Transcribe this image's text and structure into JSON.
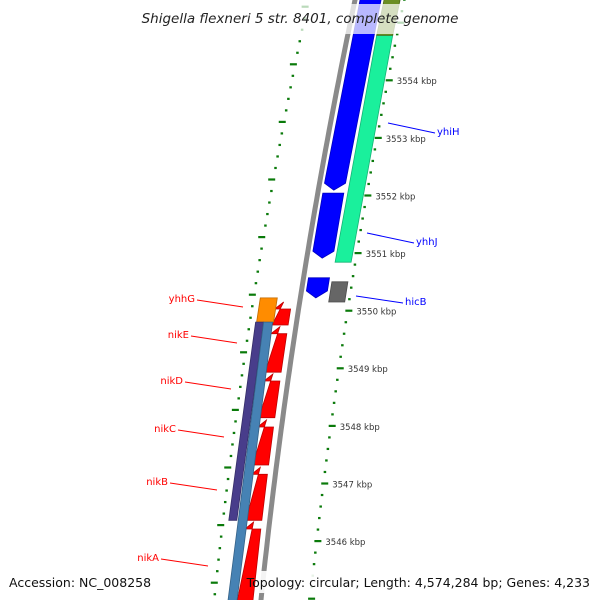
{
  "title": "Shigella flexneri 5 str. 8401, complete genome",
  "footer": {
    "accession": "Accession: NC_008258",
    "topology": "Topology: circular; Length: 4,574,284 bp; Genes: 4,233"
  },
  "colors": {
    "backbone": "#8a8a8a",
    "ruler": "#0a7a0a",
    "forward_label": "#0000ff",
    "reverse_label": "#ff0000"
  },
  "ruler": {
    "labels": [
      "3554 kbp",
      "3553 kbp",
      "3552 kbp",
      "3551 kbp",
      "3550 kbp",
      "3549 kbp",
      "3548 kbp",
      "3547 kbp",
      "3546 kbp"
    ],
    "label_values": [
      3554,
      3553,
      3552,
      3551,
      3550,
      3549,
      3548,
      3547,
      3546
    ],
    "minor_step_kbp": 0.2
  },
  "features": [
    {
      "track": "fwd-cds",
      "start": 3552.09,
      "end": 3555.4,
      "color": "#0000ff",
      "direction": "down"
    },
    {
      "track": "fwd-cds",
      "start": 3550.91,
      "end": 3552.04,
      "color": "#0000ff",
      "direction": "down"
    },
    {
      "track": "fwd-cds",
      "start": 3550.22,
      "end": 3550.57,
      "color": "#0000ff",
      "direction": "down"
    },
    {
      "track": "fwd-outer",
      "start": 3550.84,
      "end": 3554.78,
      "color": "#1af09c",
      "direction": "none"
    },
    {
      "track": "fwd-outer",
      "start": 3554.78,
      "end": 3555.4,
      "color": "#6b8e23",
      "direction": "none"
    },
    {
      "track": "fwd-outer",
      "start": 3550.15,
      "end": 3550.5,
      "color": "#666666",
      "direction": "none"
    },
    {
      "track": "rev-cds",
      "start": 3549.75,
      "end": 3550.15,
      "color": "#ff0000",
      "direction": "up"
    },
    {
      "track": "rev-cds",
      "start": 3548.93,
      "end": 3549.72,
      "color": "#ff0000",
      "direction": "up"
    },
    {
      "track": "rev-cds",
      "start": 3548.14,
      "end": 3548.9,
      "color": "#ff0000",
      "direction": "up"
    },
    {
      "track": "rev-cds",
      "start": 3547.32,
      "end": 3548.1,
      "color": "#ff0000",
      "direction": "up"
    },
    {
      "track": "rev-cds",
      "start": 3546.36,
      "end": 3547.28,
      "color": "#ff0000",
      "direction": "up"
    },
    {
      "track": "rev-cds",
      "start": 3544.9,
      "end": 3546.33,
      "color": "#ff0000",
      "direction": "up"
    },
    {
      "track": "rev-outer",
      "start": 3549.8,
      "end": 3550.22,
      "color": "#ff8c00",
      "direction": "none"
    },
    {
      "track": "rev-purple",
      "start": 3546.36,
      "end": 3549.8,
      "color": "#483d8b",
      "direction": "none"
    },
    {
      "track": "rev-steel",
      "start": 3544.9,
      "end": 3549.8,
      "color": "#4682b4",
      "direction": "none"
    }
  ],
  "gene_labels": {
    "yhiH": "yhiH",
    "yhhJ": "yhhJ",
    "hicB": "hicB",
    "yhhG": "yhhG",
    "nikE": "nikE",
    "nikD": "nikD",
    "nikC": "nikC",
    "nikB": "nikB",
    "nikA": "nikA"
  }
}
